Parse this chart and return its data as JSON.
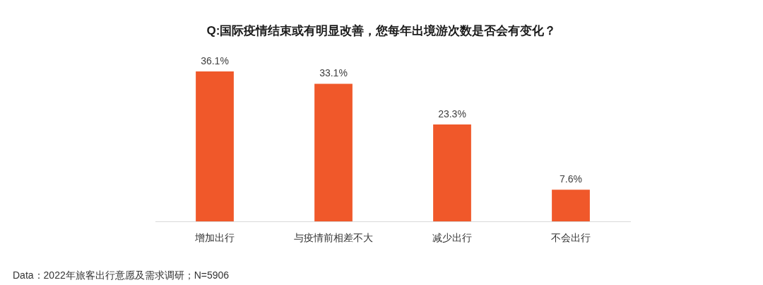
{
  "chart_data": {
    "type": "bar",
    "title": "Q:国际疫情结束或有明显改善，您每年出境游次数是否会有变化？",
    "categories": [
      "增加出行",
      "与疫情前相差不大",
      "减少出行",
      "不会出行"
    ],
    "values": [
      36.1,
      33.1,
      23.3,
      7.6
    ],
    "value_labels": [
      "36.1%",
      "33.1%",
      "23.3%",
      "7.6%"
    ],
    "color": "#f0582a",
    "tick_labels": "x",
    "annotations": [
      "Data：2022年旅客出行意愿及需求调研；N=5906"
    ]
  }
}
